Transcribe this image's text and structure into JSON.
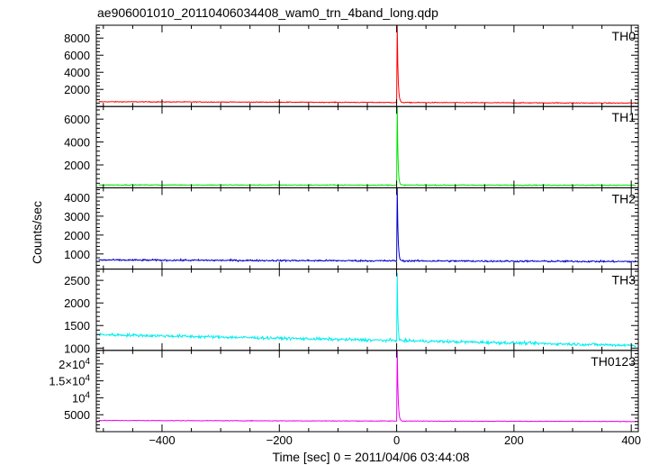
{
  "chart_data": {
    "type": "line",
    "title": "ae906001010_20110406034408_wam0_trn_4band_long.qdp",
    "xlabel": "Time [sec] 0 = 2011/04/06 03:44:08",
    "ylabel": "Counts/sec",
    "xlim": [
      -512,
      412
    ],
    "x_ticks": [
      -400,
      -200,
      0,
      200,
      400
    ],
    "x_tick_labels": [
      "−400",
      "−200",
      "0",
      "200",
      "400"
    ],
    "grid": false,
    "legend": "none",
    "panels": [
      {
        "name": "TH0",
        "color": "#ff0000",
        "ylim": [
          0,
          9500
        ],
        "yticks": [
          2000,
          4000,
          6000,
          8000
        ],
        "ytick_labels": [
          "2000",
          "4000",
          "6000",
          "8000"
        ],
        "profile": {
          "start": 560,
          "end": 400,
          "noise": 45,
          "peak": 9600,
          "decay_s": 1.4,
          "peak_time": 1
        }
      },
      {
        "name": "TH1",
        "color": "#00e000",
        "ylim": [
          0,
          7100
        ],
        "yticks": [
          2000,
          4000,
          6000
        ],
        "ytick_labels": [
          "2000",
          "4000",
          "6000"
        ],
        "profile": {
          "start": 250,
          "end": 230,
          "noise": 35,
          "peak": 7500,
          "decay_s": 1.2,
          "peak_time": 1
        }
      },
      {
        "name": "TH2",
        "color": "#0000cc",
        "ylim": [
          200,
          4500
        ],
        "yticks": [
          1000,
          2000,
          3000,
          4000
        ],
        "ytick_labels": [
          "1000",
          "2000",
          "3000",
          "4000"
        ],
        "profile": {
          "start": 680,
          "end": 600,
          "noise": 45,
          "peak": 4700,
          "decay_s": 1.3,
          "peak_time": 1
        }
      },
      {
        "name": "TH3",
        "color": "#00eeee",
        "ylim": [
          950,
          2750
        ],
        "yticks": [
          1000,
          1500,
          2000,
          2500
        ],
        "ytick_labels": [
          "1000",
          "1500",
          "2000",
          "2500"
        ],
        "profile": {
          "start": 1300,
          "end": 1060,
          "noise": 32,
          "peak": 2700,
          "decay_s": 1.0,
          "peak_time": 1
        }
      },
      {
        "name": "TH0123",
        "color": "#ee00ee",
        "ylim": [
          0,
          24000
        ],
        "yticks": [
          5000,
          10000,
          15000,
          20000
        ],
        "ytick_labels": [
          "5000",
          "10^4",
          "1.5×10^4",
          "2×10^4"
        ],
        "profile": {
          "start": 3300,
          "end": 3000,
          "noise": 90,
          "peak": 25000,
          "decay_s": 1.4,
          "peak_time": 1
        }
      }
    ]
  }
}
